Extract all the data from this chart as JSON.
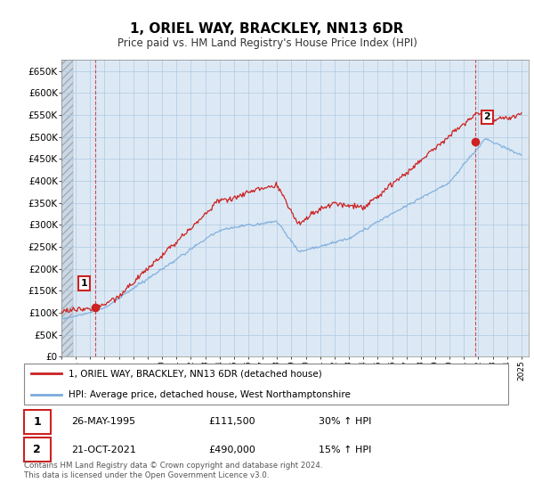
{
  "title": "1, ORIEL WAY, BRACKLEY, NN13 6DR",
  "subtitle": "Price paid vs. HM Land Registry's House Price Index (HPI)",
  "ylim": [
    0,
    675000
  ],
  "yticks": [
    0,
    50000,
    100000,
    150000,
    200000,
    250000,
    300000,
    350000,
    400000,
    450000,
    500000,
    550000,
    600000,
    650000
  ],
  "ytick_labels": [
    "£0",
    "£50K",
    "£100K",
    "£150K",
    "£200K",
    "£250K",
    "£300K",
    "£350K",
    "£400K",
    "£450K",
    "£500K",
    "£550K",
    "£600K",
    "£650K"
  ],
  "xlim_start": 1993.0,
  "xlim_end": 2025.5,
  "line1_color": "#cc2222",
  "line2_color": "#7aabdb",
  "marker1_x": 1995.38,
  "marker1_y": 111500,
  "marker2_x": 2021.8,
  "marker2_y": 490000,
  "legend_line1": "1, ORIEL WAY, BRACKLEY, NN13 6DR (detached house)",
  "legend_line2": "HPI: Average price, detached house, West Northamptonshire",
  "table": [
    {
      "num": "1",
      "date": "26-MAY-1995",
      "price": "£111,500",
      "pct": "30% ↑ HPI"
    },
    {
      "num": "2",
      "date": "21-OCT-2021",
      "price": "£490,000",
      "pct": "15% ↑ HPI"
    }
  ],
  "footer": "Contains HM Land Registry data © Crown copyright and database right 2024.\nThis data is licensed under the Open Government Licence v3.0.",
  "bg_color": "#ffffff",
  "plot_bg_color": "#dce9f5"
}
